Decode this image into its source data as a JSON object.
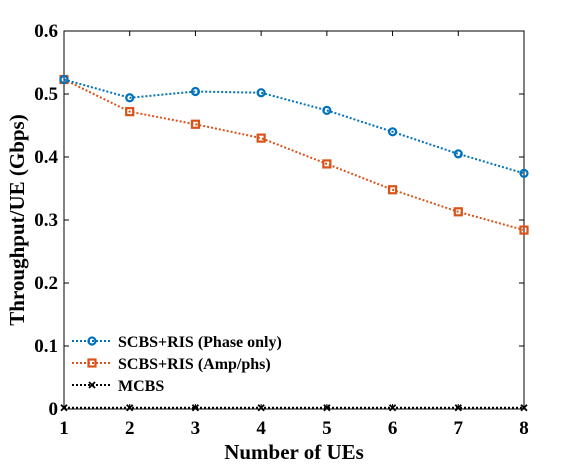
{
  "chart_data": {
    "type": "line",
    "title": "",
    "xlabel": "Number of UEs",
    "ylabel": "Throughput/UE (Gbps)",
    "x": [
      1,
      2,
      3,
      4,
      5,
      6,
      7,
      8
    ],
    "xlim": [
      1,
      8
    ],
    "ylim": [
      0,
      0.6
    ],
    "xticks": [
      "1",
      "2",
      "3",
      "4",
      "5",
      "6",
      "7",
      "8"
    ],
    "yticks": [
      "0",
      "0.1",
      "0.2",
      "0.3",
      "0.4",
      "0.5",
      "0.6"
    ],
    "grid": false,
    "legend_position": "bottom-left",
    "series": [
      {
        "name": "SCBS+RIS (Phase only)",
        "values": [
          0.523,
          0.494,
          0.504,
          0.502,
          0.474,
          0.44,
          0.405,
          0.374
        ],
        "color": "#0072BD",
        "marker": "circle",
        "linestyle": "dotted"
      },
      {
        "name": "SCBS+RIS (Amp/phs)",
        "values": [
          0.523,
          0.472,
          0.452,
          0.43,
          0.389,
          0.348,
          0.313,
          0.284
        ],
        "color": "#D95319",
        "marker": "square",
        "linestyle": "dotted"
      },
      {
        "name": "MCBS",
        "values": [
          0.002,
          0.002,
          0.002,
          0.002,
          0.002,
          0.002,
          0.002,
          0.002
        ],
        "color": "#000000",
        "marker": "x",
        "linestyle": "dotted"
      }
    ]
  }
}
